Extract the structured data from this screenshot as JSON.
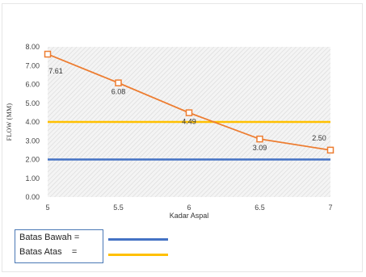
{
  "chart_data": {
    "type": "line",
    "xlabel": "Kadar Aspal",
    "ylabel": "FLOW (MM)",
    "x": [
      5,
      5.5,
      6,
      6.5,
      7
    ],
    "x_tick_labels": [
      "5",
      "5.5",
      "6",
      "6.5",
      "7"
    ],
    "xlim": [
      5,
      7
    ],
    "ylim": [
      0,
      8
    ],
    "y_tick_labels": [
      "0.00",
      "1.00",
      "2.00",
      "3.00",
      "4.00",
      "5.00",
      "6.00",
      "7.00",
      "8.00"
    ],
    "grid": false,
    "plot_background": "hatched",
    "series": [
      {
        "values": [
          7.61,
          6.08,
          4.49,
          3.09,
          2.5
        ],
        "data_labels": [
          "7.61",
          "6.08",
          "4.49",
          "3.09",
          "2.50"
        ],
        "color": "#ed7d31",
        "marker": "open-square"
      }
    ],
    "reference_lines": [
      {
        "name": "Batas Bawah",
        "value": 2,
        "color": "#4472c4"
      },
      {
        "name": "Batas Atas",
        "value": 4,
        "color": "#ffc000"
      }
    ],
    "legend": {
      "placement": "bottom-left",
      "entries": [
        {
          "label": "Batas Bawah =",
          "color": "#4472c4"
        },
        {
          "label": "Batas Atas    =",
          "color": "#ffc000"
        }
      ]
    }
  }
}
